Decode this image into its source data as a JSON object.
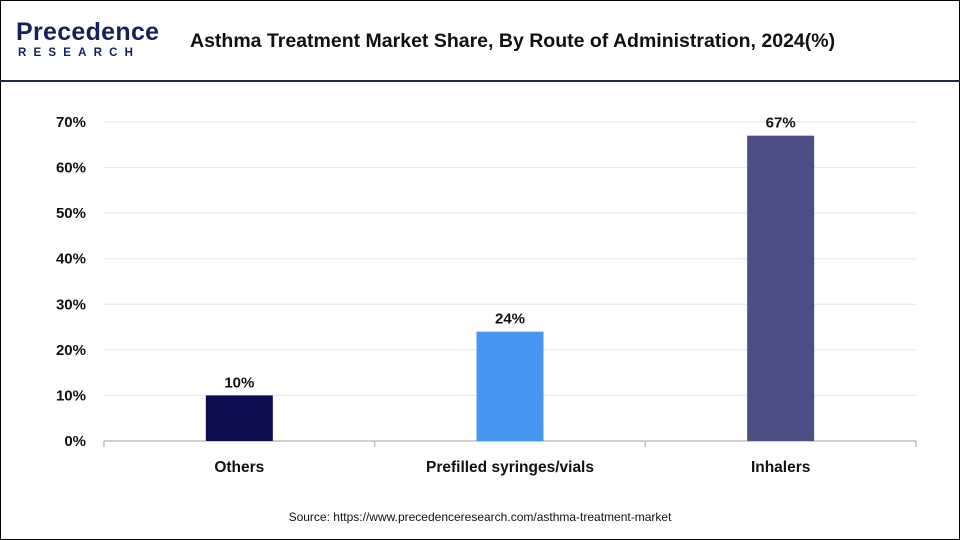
{
  "brand": {
    "name": "Precedence",
    "tagline": "RESEARCH",
    "color": "#16205a"
  },
  "title": "Asthma Treatment Market Share, By Route of Administration, 2024(%)",
  "source": "Source:  https://www.precedenceresearch.com/asthma-treatment-market",
  "chart_data": {
    "type": "bar",
    "categories": [
      "Others",
      "Prefilled syringes/vials",
      "Inhalers"
    ],
    "values": [
      10,
      24,
      67
    ],
    "data_labels": [
      "10%",
      "24%",
      "67%"
    ],
    "colors": [
      "#0b0d4f",
      "#4795f0",
      "#4c4e86"
    ],
    "ylim": [
      0,
      70
    ],
    "yticks": [
      "0%",
      "10%",
      "20%",
      "30%",
      "40%",
      "50%",
      "60%",
      "70%"
    ],
    "grid": true,
    "legend": "none"
  }
}
